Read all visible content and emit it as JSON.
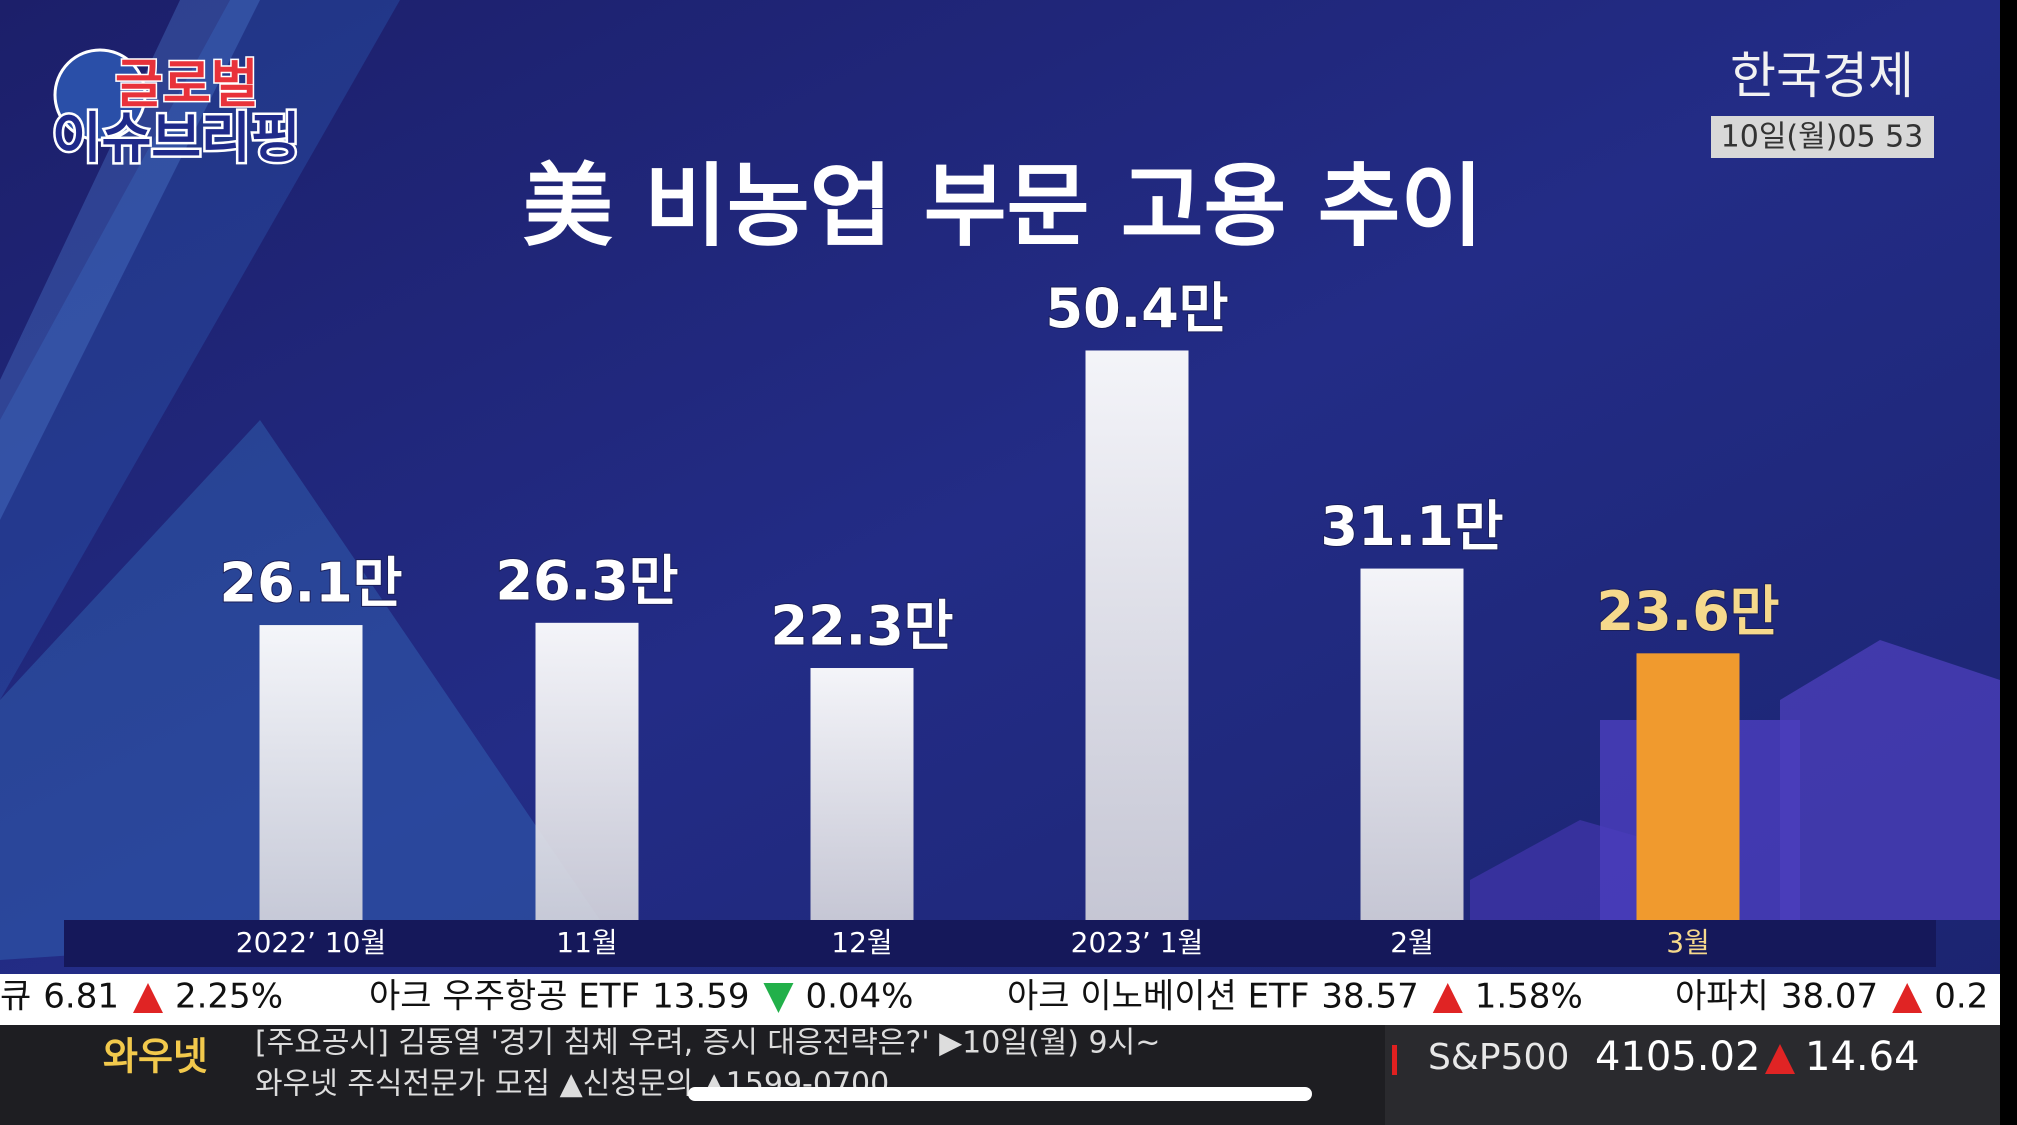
{
  "header": {
    "logo_top": "글로벌",
    "logo_bottom": "이슈브리핑",
    "channel": "한국경제",
    "time": "10일(월)05 53"
  },
  "chart_data": {
    "type": "bar",
    "title": "美 비농업 부문 고용 추이",
    "categories": [
      "2022’ 10월",
      "11월",
      "12월",
      "2023’ 1월",
      "2월",
      "3월"
    ],
    "values": [
      26.1,
      26.3,
      22.3,
      50.4,
      31.1,
      23.6
    ],
    "value_labels": [
      "26.1만",
      "26.3만",
      "22.3만",
      "50.4만",
      "31.1만",
      "23.6만"
    ],
    "colors": [
      "#f4f4f6",
      "#f4f4f6",
      "#f4f4f6",
      "#f4f4f6",
      "#f4f4f6",
      "#f09a2e"
    ],
    "label_colors": [
      "#ffffff",
      "#ffffff",
      "#ffffff",
      "#ffffff",
      "#ffffff",
      "#f6d98c"
    ]
  },
  "ticker": [
    {
      "name": "큐",
      "price": "6.81",
      "change": "2.25%",
      "direction": "up"
    },
    {
      "name": "아크 우주항공 ETF",
      "price": "13.59",
      "change": "0.04%",
      "direction": "down"
    },
    {
      "name": "아크 이노베이션 ETF",
      "price": "38.57",
      "change": "1.58%",
      "direction": "up"
    },
    {
      "name": "아파치",
      "price": "38.07",
      "change": "0.2",
      "direction": "up"
    }
  ],
  "footer": {
    "brand": "와우넷",
    "news": [
      "[주요공시] 김동열 '경기 침체 우려, 증시 대응전략은?' ▶10일(월) 9시~",
      "와우넷 주식전문가 모집 ▲신청문의 ▲1599-0700"
    ],
    "index": {
      "name": "S&P500",
      "value": "4105.02",
      "change": "14.64",
      "direction": "up"
    }
  }
}
